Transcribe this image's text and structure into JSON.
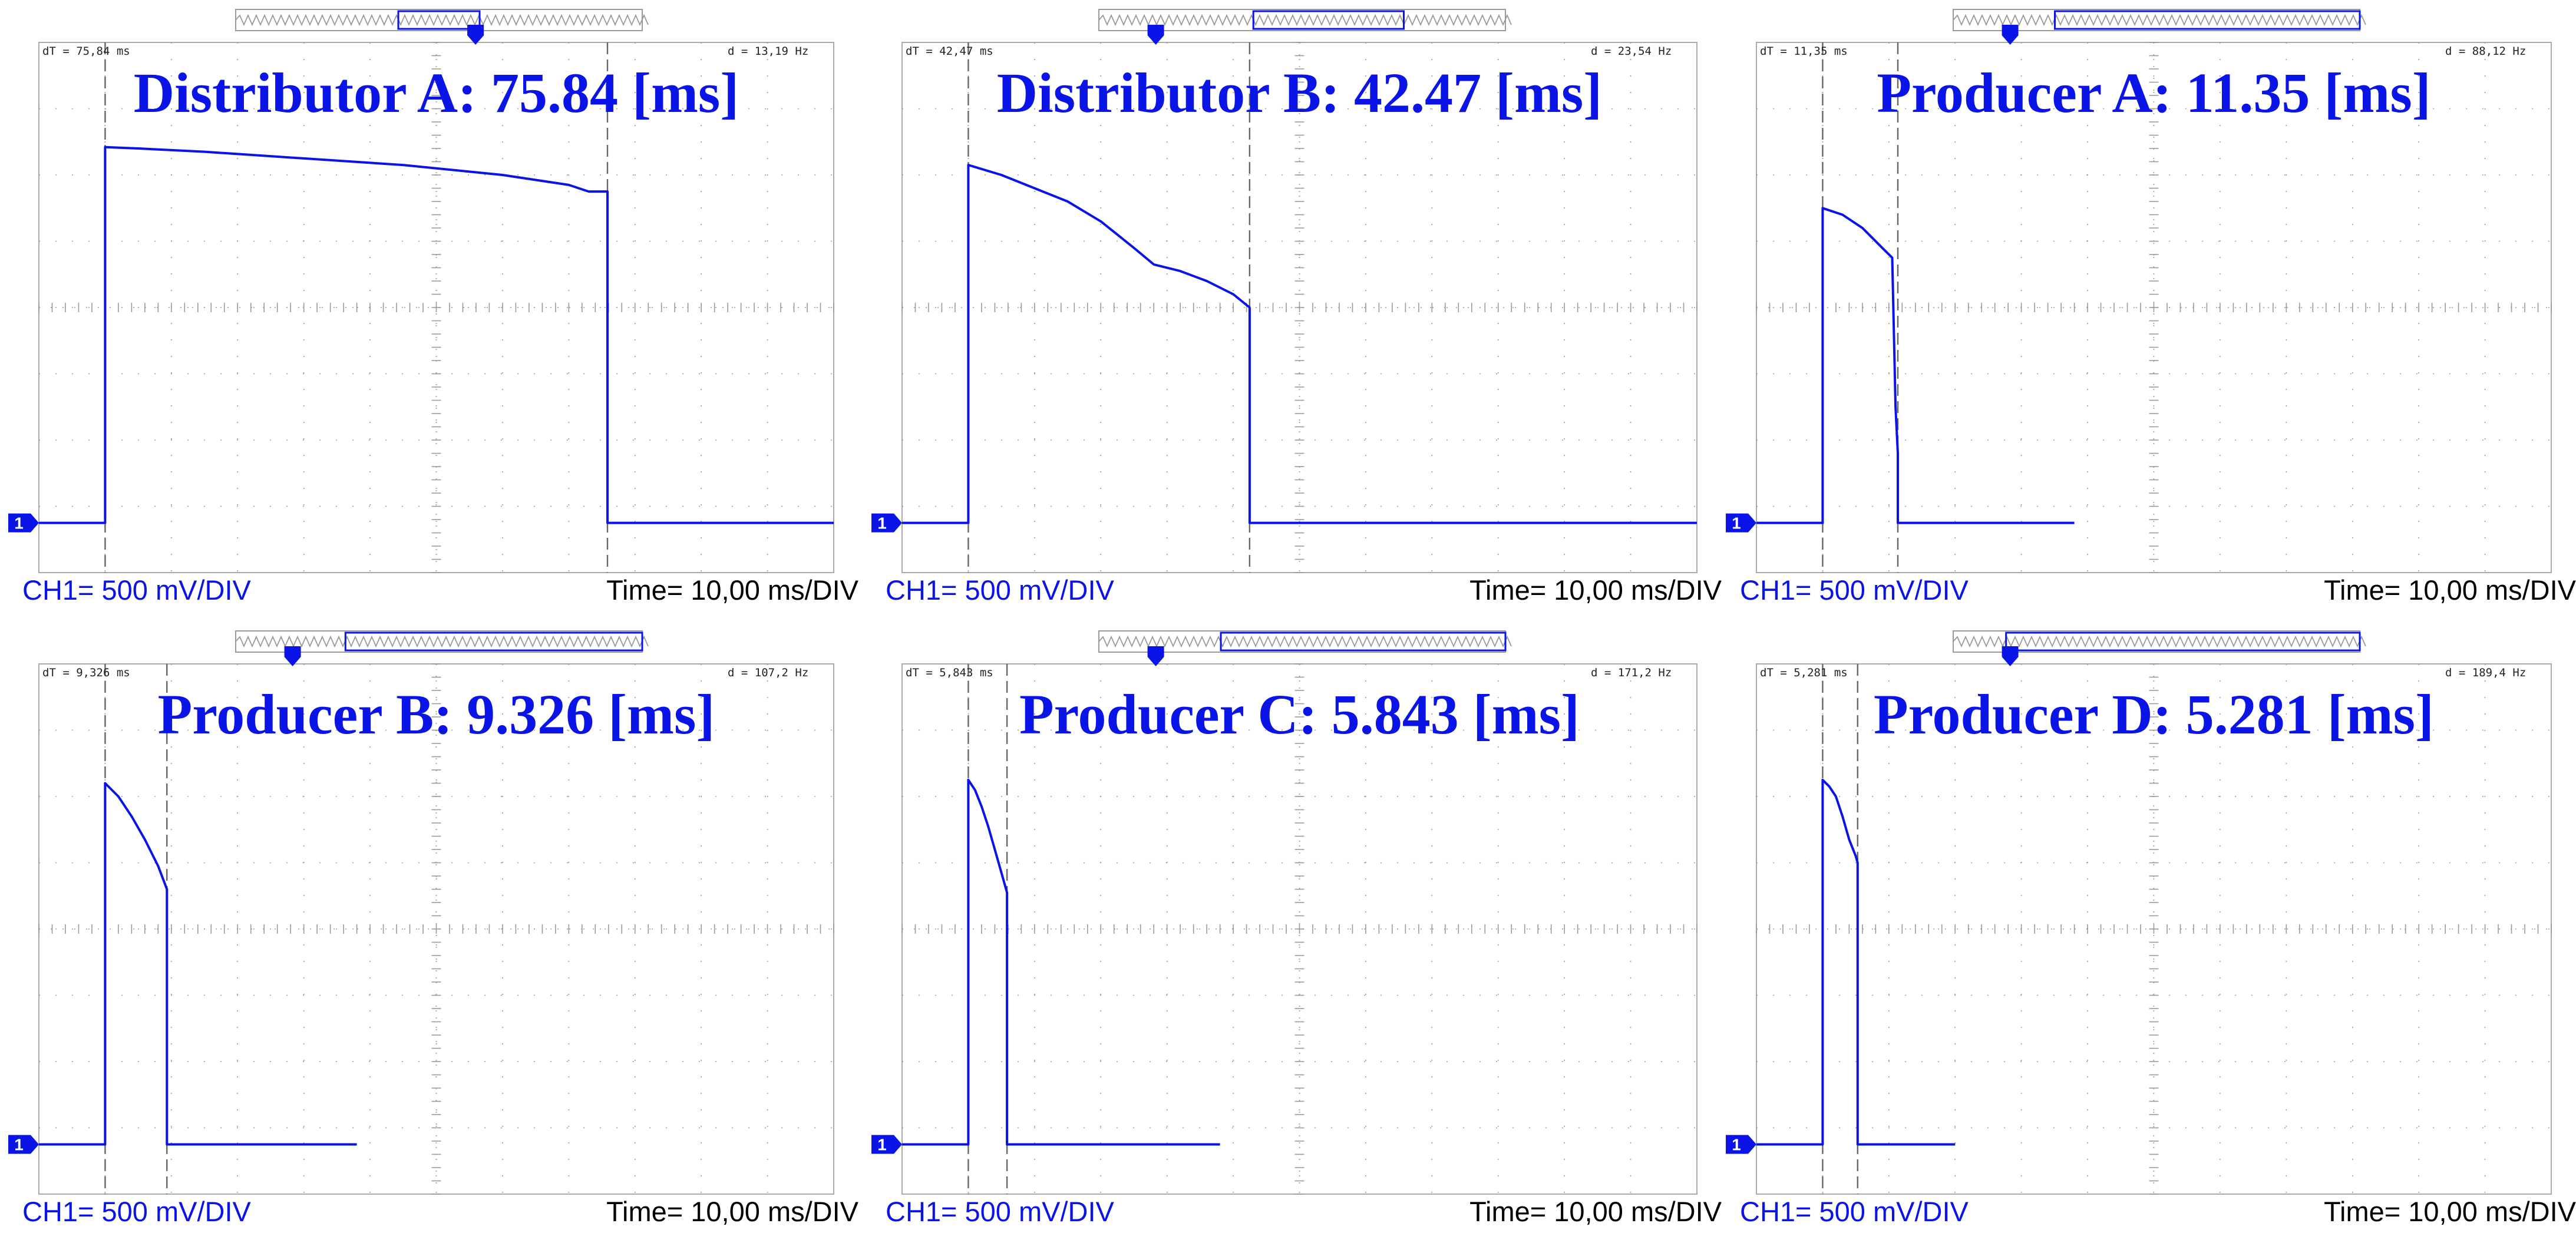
{
  "colors": {
    "trace": "#0a14e6",
    "grid": "#9a9a9a",
    "frame": "#aaaaaa",
    "cursor": "#666666",
    "bg": "#ffffff"
  },
  "common": {
    "channel_label": "CH1= 500 mV/DIV",
    "time_label": "Time= 10,00 ms/DIV",
    "channel_marker": "1"
  },
  "chart_data": [
    {
      "type": "line",
      "title": "Distributor A: 75.84 [ms]",
      "readout_dt": "dT =   75,84 ms",
      "readout_freq": "d =   13,19 Hz",
      "xlim": [
        0,
        120
      ],
      "ylim": [
        -4,
        4
      ],
      "cursors": [
        0,
        75.84
      ],
      "nav_window": [
        0.4,
        0.6
      ],
      "nav_marker": 0.59,
      "series": [
        {
          "x": [
            -10,
            0,
            0,
            5,
            15,
            30,
            45,
            60,
            70,
            73,
            75.84,
            75.84,
            110
          ],
          "y": [
            -3.25,
            -3.25,
            2.42,
            2.4,
            2.35,
            2.25,
            2.15,
            2.0,
            1.85,
            1.75,
            1.75,
            -3.25,
            -3.25
          ]
        }
      ]
    },
    {
      "type": "line",
      "title": "Distributor B: 42.47 [ms]",
      "readout_dt": "dT =   42,47 ms",
      "readout_freq": "d =   23,54 Hz",
      "xlim": [
        0,
        120
      ],
      "ylim": [
        -4,
        4
      ],
      "cursors": [
        0,
        42.47
      ],
      "nav_window": [
        0.38,
        0.75
      ],
      "nav_marker": 0.14,
      "series": [
        {
          "x": [
            -10,
            0,
            0,
            5,
            10,
            15,
            20,
            25,
            28,
            32,
            36,
            40,
            42.47,
            42.47,
            110
          ],
          "y": [
            -3.25,
            -3.25,
            2.15,
            2.0,
            1.8,
            1.6,
            1.3,
            0.9,
            0.65,
            0.55,
            0.4,
            0.2,
            0.0,
            -3.25,
            -3.25
          ]
        }
      ]
    },
    {
      "type": "line",
      "title": "Producer A: 11.35 [ms]",
      "readout_dt": "dT =   11,35 ms",
      "readout_freq": "d =   88,12 Hz",
      "xlim": [
        0,
        120
      ],
      "ylim": [
        -4,
        4
      ],
      "cursors": [
        0,
        11.35
      ],
      "nav_window": [
        0.25,
        1.0
      ],
      "nav_marker": 0.14,
      "series": [
        {
          "x": [
            -10,
            0,
            0,
            3,
            6,
            9,
            10.5,
            11,
            11.35,
            11.35,
            38
          ],
          "y": [
            -3.25,
            -3.25,
            1.5,
            1.4,
            1.2,
            0.9,
            0.75,
            -1.5,
            -2.2,
            -3.25,
            -3.25
          ]
        }
      ]
    },
    {
      "type": "line",
      "title": "Producer B: 9.326 [ms]",
      "readout_dt": "dT =   9,326 ms",
      "readout_freq": "d =   107,2 Hz",
      "xlim": [
        0,
        120
      ],
      "ylim": [
        -4,
        4
      ],
      "cursors": [
        0,
        9.326
      ],
      "nav_window": [
        0.27,
        1.0
      ],
      "nav_marker": 0.14,
      "series": [
        {
          "x": [
            -10,
            0,
            0,
            2,
            4,
            6,
            8,
            9.326,
            9.326,
            38
          ],
          "y": [
            -3.25,
            -3.25,
            2.2,
            2.0,
            1.7,
            1.35,
            0.95,
            0.6,
            -3.25,
            -3.25
          ]
        }
      ]
    },
    {
      "type": "line",
      "title": "Producer C: 5.843 [ms]",
      "readout_dt": "dT =   5,843 ms",
      "readout_freq": "d =   171,2 Hz",
      "xlim": [
        0,
        120
      ],
      "ylim": [
        -4,
        4
      ],
      "cursors": [
        0,
        5.843
      ],
      "nav_window": [
        0.3,
        1.0
      ],
      "nav_marker": 0.14,
      "series": [
        {
          "x": [
            -10,
            0,
            0,
            1,
            2,
            3,
            4,
            5,
            5.843,
            5.843,
            38
          ],
          "y": [
            -3.25,
            -3.25,
            2.25,
            2.1,
            1.85,
            1.55,
            1.2,
            0.85,
            0.55,
            -3.25,
            -3.25
          ]
        }
      ]
    },
    {
      "type": "line",
      "title": "Producer D: 5.281 [ms]",
      "readout_dt": "dT =   5,281 ms",
      "readout_freq": "d =   189,4 Hz",
      "xlim": [
        0,
        120
      ],
      "ylim": [
        -4,
        4
      ],
      "cursors": [
        0,
        5.281
      ],
      "nav_window": [
        0.13,
        1.0
      ],
      "nav_marker": 0.14,
      "series": [
        {
          "x": [
            -10,
            0,
            0,
            1,
            2,
            3,
            4,
            5,
            5.281,
            5.281,
            20
          ],
          "y": [
            -3.25,
            -3.25,
            2.25,
            2.15,
            2.0,
            1.7,
            1.35,
            1.1,
            1.0,
            -3.25,
            -3.25
          ]
        }
      ]
    }
  ]
}
